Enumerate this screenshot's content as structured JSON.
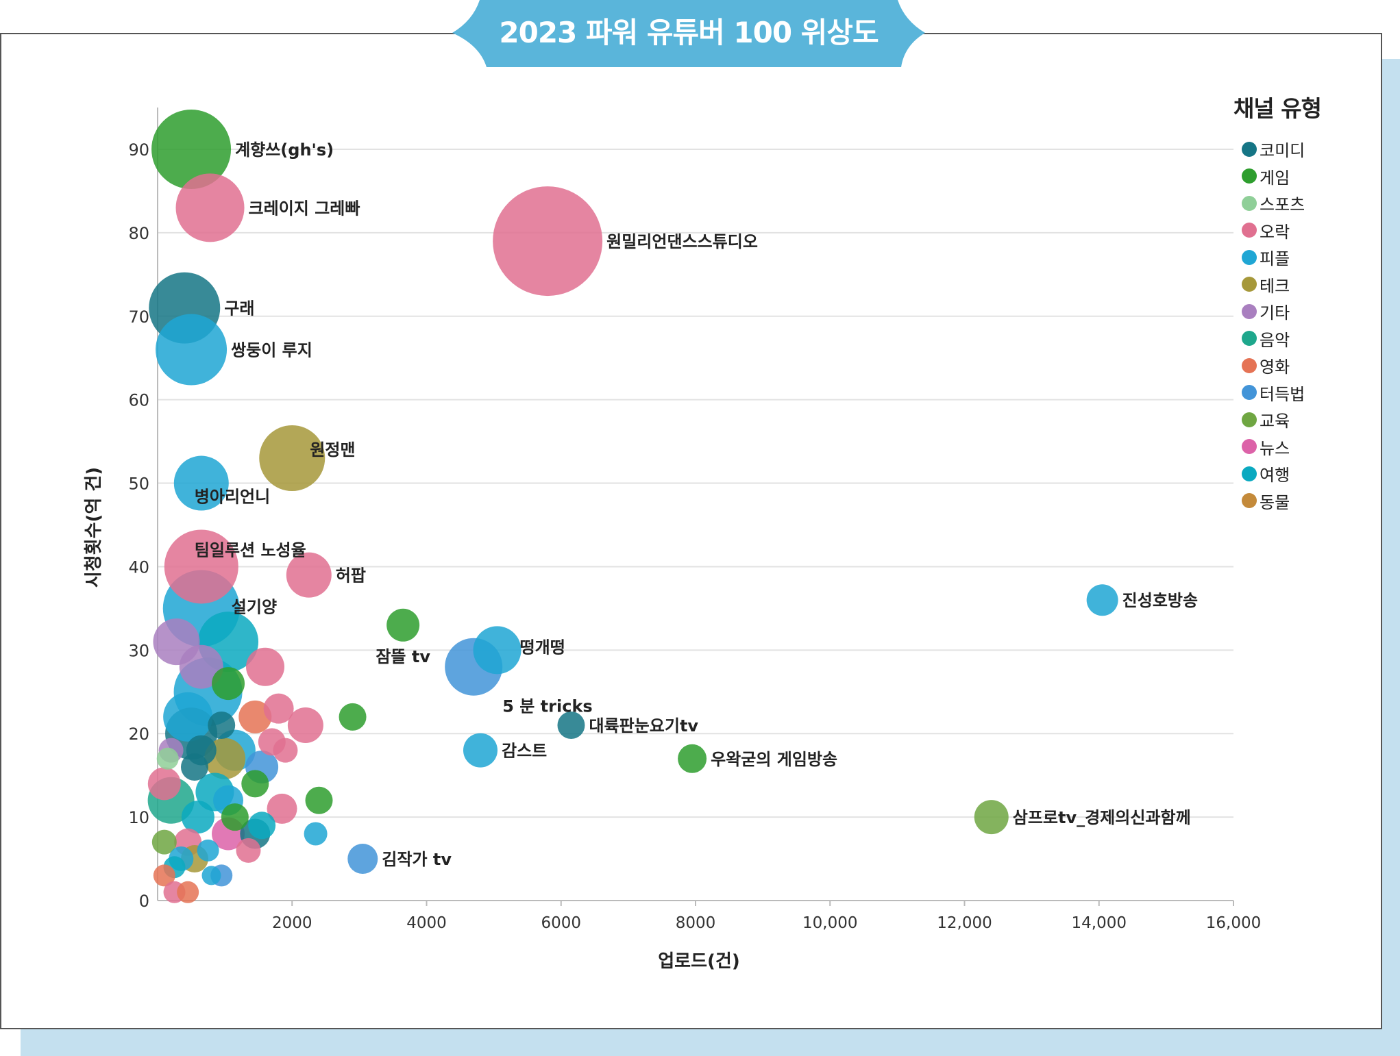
{
  "title": "2023 파워 유튜버 100 위상도",
  "colors": {
    "title_bg": "#5ab5da",
    "shadow": "#c4e0ef"
  },
  "legend": {
    "title": "채널 유형",
    "items": [
      {
        "label": "코미디",
        "color": "#157585"
      },
      {
        "label": "게임",
        "color": "#2e9e2e"
      },
      {
        "label": "스포츠",
        "color": "#8fcf98"
      },
      {
        "label": "오락",
        "color": "#e07090"
      },
      {
        "label": "피플",
        "color": "#1fa6d4"
      },
      {
        "label": "테크",
        "color": "#a6983a"
      },
      {
        "label": "기타",
        "color": "#a97fbf"
      },
      {
        "label": "음악",
        "color": "#1ea78c"
      },
      {
        "label": "영화",
        "color": "#e57355"
      },
      {
        "label": "터득법",
        "color": "#4294d8"
      },
      {
        "label": "교육",
        "color": "#6fa642"
      },
      {
        "label": "뉴스",
        "color": "#dc62a8"
      },
      {
        "label": "여행",
        "color": "#0aa9c0"
      },
      {
        "label": "동물",
        "color": "#c48a3a"
      }
    ]
  },
  "chart_data": {
    "type": "scatter",
    "subtype": "bubble",
    "xlabel": "업로드(건)",
    "ylabel": "시청횟수(억 건)",
    "xlim": [
      0,
      16000
    ],
    "ylim": [
      0,
      95
    ],
    "xticks": [
      {
        "v": 2000,
        "label": "2000"
      },
      {
        "v": 4000,
        "label": "4000"
      },
      {
        "v": 6000,
        "label": "6000"
      },
      {
        "v": 8000,
        "label": "8000"
      },
      {
        "v": 10000,
        "label": "10,000"
      },
      {
        "v": 12000,
        "label": "12,000"
      },
      {
        "v": 14000,
        "label": "14,000"
      },
      {
        "v": 16000,
        "label": "16,000"
      }
    ],
    "yticks": [
      {
        "v": 0,
        "label": "0"
      },
      {
        "v": 10,
        "label": "10"
      },
      {
        "v": 20,
        "label": "20"
      },
      {
        "v": 30,
        "label": "30"
      },
      {
        "v": 40,
        "label": "40"
      },
      {
        "v": 50,
        "label": "50"
      },
      {
        "v": 60,
        "label": "60"
      },
      {
        "v": 70,
        "label": "70"
      },
      {
        "v": 80,
        "label": "80"
      },
      {
        "v": 90,
        "label": "90"
      }
    ],
    "grid": "horizontal",
    "legend_position": "right",
    "points": [
      {
        "x": 500,
        "y": 90,
        "r": 58,
        "cat": "게임",
        "label": "계향쓰(gh's)",
        "lpos": "right"
      },
      {
        "x": 780,
        "y": 83,
        "r": 50,
        "cat": "오락",
        "label": "크레이지 그레빠",
        "lpos": "right"
      },
      {
        "x": 5800,
        "y": 79,
        "r": 80,
        "cat": "오락",
        "label": "원밀리언댄스스튜디오",
        "lpos": "right"
      },
      {
        "x": 400,
        "y": 71,
        "r": 52,
        "cat": "코미디",
        "label": "구래",
        "lpos": "right"
      },
      {
        "x": 500,
        "y": 66,
        "r": 52,
        "cat": "피플",
        "label": "쌍둥이 루지",
        "lpos": "right"
      },
      {
        "x": 2000,
        "y": 53,
        "r": 48,
        "cat": "테크",
        "label": "원정맨",
        "lpos": "right"
      },
      {
        "x": 650,
        "y": 50,
        "r": 40,
        "cat": "피플",
        "label": "병아리언니",
        "lpos": "below"
      },
      {
        "x": 650,
        "y": 40,
        "r": 54,
        "cat": "오락",
        "label": "팀일루션 노성율",
        "lpos": "above"
      },
      {
        "x": 2250,
        "y": 39,
        "r": 33,
        "cat": "오락",
        "label": "허팝",
        "lpos": "right"
      },
      {
        "x": 650,
        "y": 35,
        "r": 56,
        "cat": "피플",
        "label": "설기양",
        "lpos": "right"
      },
      {
        "x": 3650,
        "y": 33,
        "r": 24,
        "cat": "게임",
        "label": "잠뜰 tv",
        "lpos": "belowleft"
      },
      {
        "x": 5050,
        "y": 30,
        "r": 35,
        "cat": "피플",
        "label": "떵개떵",
        "lpos": "right"
      },
      {
        "x": 4700,
        "y": 28,
        "r": 42,
        "cat": "터득법",
        "label": "5 분 tricks",
        "lpos": "belowright"
      },
      {
        "x": 14050,
        "y": 36,
        "r": 23,
        "cat": "피플",
        "label": "진성호방송",
        "lpos": "right"
      },
      {
        "x": 6150,
        "y": 21,
        "r": 20,
        "cat": "코미디",
        "label": "대륙판눈요기tv",
        "lpos": "right"
      },
      {
        "x": 4800,
        "y": 18,
        "r": 25,
        "cat": "피플",
        "label": "감스트",
        "lpos": "right"
      },
      {
        "x": 7950,
        "y": 17,
        "r": 21,
        "cat": "게임",
        "label": "우왁굳의 게임방송",
        "lpos": "right"
      },
      {
        "x": 12400,
        "y": 10,
        "r": 25,
        "cat": "교육",
        "label": "삼프로tv_경제의신과함께",
        "lpos": "right"
      },
      {
        "x": 3050,
        "y": 5,
        "r": 22,
        "cat": "터득법",
        "label": "김작가 tv",
        "lpos": "right"
      },
      {
        "x": 1050,
        "y": 31,
        "r": 44,
        "cat": "여행"
      },
      {
        "x": 280,
        "y": 31,
        "r": 34,
        "cat": "기타"
      },
      {
        "x": 1600,
        "y": 28,
        "r": 28,
        "cat": "오락"
      },
      {
        "x": 650,
        "y": 28,
        "r": 32,
        "cat": "기타"
      },
      {
        "x": 750,
        "y": 25,
        "r": 50,
        "cat": "피플"
      },
      {
        "x": 1050,
        "y": 26,
        "r": 24,
        "cat": "게임"
      },
      {
        "x": 2900,
        "y": 22,
        "r": 20,
        "cat": "게임"
      },
      {
        "x": 1450,
        "y": 22,
        "r": 24,
        "cat": "영화"
      },
      {
        "x": 1800,
        "y": 23,
        "r": 22,
        "cat": "오락"
      },
      {
        "x": 2200,
        "y": 21,
        "r": 26,
        "cat": "오락"
      },
      {
        "x": 450,
        "y": 22,
        "r": 36,
        "cat": "피플"
      },
      {
        "x": 500,
        "y": 20,
        "r": 38,
        "cat": "코미디"
      },
      {
        "x": 950,
        "y": 21,
        "r": 20,
        "cat": "코미디"
      },
      {
        "x": 1150,
        "y": 18,
        "r": 30,
        "cat": "피플"
      },
      {
        "x": 1700,
        "y": 19,
        "r": 20,
        "cat": "오락"
      },
      {
        "x": 1900,
        "y": 18,
        "r": 18,
        "cat": "오락"
      },
      {
        "x": 1550,
        "y": 16,
        "r": 24,
        "cat": "터득법"
      },
      {
        "x": 1000,
        "y": 17,
        "r": 30,
        "cat": "테크"
      },
      {
        "x": 650,
        "y": 18,
        "r": 22,
        "cat": "코미디"
      },
      {
        "x": 200,
        "y": 18,
        "r": 18,
        "cat": "기타"
      },
      {
        "x": 550,
        "y": 16,
        "r": 20,
        "cat": "코미디"
      },
      {
        "x": 150,
        "y": 17,
        "r": 16,
        "cat": "스포츠"
      },
      {
        "x": 100,
        "y": 14,
        "r": 24,
        "cat": "오락"
      },
      {
        "x": 1450,
        "y": 14,
        "r": 20,
        "cat": "게임"
      },
      {
        "x": 2400,
        "y": 12,
        "r": 20,
        "cat": "게임"
      },
      {
        "x": 1850,
        "y": 11,
        "r": 22,
        "cat": "오락"
      },
      {
        "x": 850,
        "y": 13,
        "r": 28,
        "cat": "여행"
      },
      {
        "x": 1050,
        "y": 12,
        "r": 22,
        "cat": "피플"
      },
      {
        "x": 1150,
        "y": 10,
        "r": 20,
        "cat": "게임"
      },
      {
        "x": 200,
        "y": 12,
        "r": 34,
        "cat": "음악"
      },
      {
        "x": 600,
        "y": 10,
        "r": 24,
        "cat": "여행"
      },
      {
        "x": 1550,
        "y": 9,
        "r": 20,
        "cat": "여행"
      },
      {
        "x": 1450,
        "y": 8,
        "r": 22,
        "cat": "코미디"
      },
      {
        "x": 1050,
        "y": 8,
        "r": 24,
        "cat": "뉴스"
      },
      {
        "x": 2350,
        "y": 8,
        "r": 17,
        "cat": "피플"
      },
      {
        "x": 100,
        "y": 7,
        "r": 18,
        "cat": "교육"
      },
      {
        "x": 450,
        "y": 7,
        "r": 20,
        "cat": "오락"
      },
      {
        "x": 1350,
        "y": 6,
        "r": 18,
        "cat": "오락"
      },
      {
        "x": 750,
        "y": 6,
        "r": 16,
        "cat": "피플"
      },
      {
        "x": 350,
        "y": 5,
        "r": 18,
        "cat": "피플"
      },
      {
        "x": 550,
        "y": 5,
        "r": 20,
        "cat": "테크"
      },
      {
        "x": 250,
        "y": 4,
        "r": 16,
        "cat": "여행"
      },
      {
        "x": 950,
        "y": 3,
        "r": 16,
        "cat": "터득법"
      },
      {
        "x": 100,
        "y": 3,
        "r": 16,
        "cat": "영화"
      },
      {
        "x": 250,
        "y": 1,
        "r": 16,
        "cat": "오락"
      },
      {
        "x": 450,
        "y": 1,
        "r": 16,
        "cat": "영화"
      },
      {
        "x": 800,
        "y": 3,
        "r": 14,
        "cat": "피플"
      }
    ]
  }
}
